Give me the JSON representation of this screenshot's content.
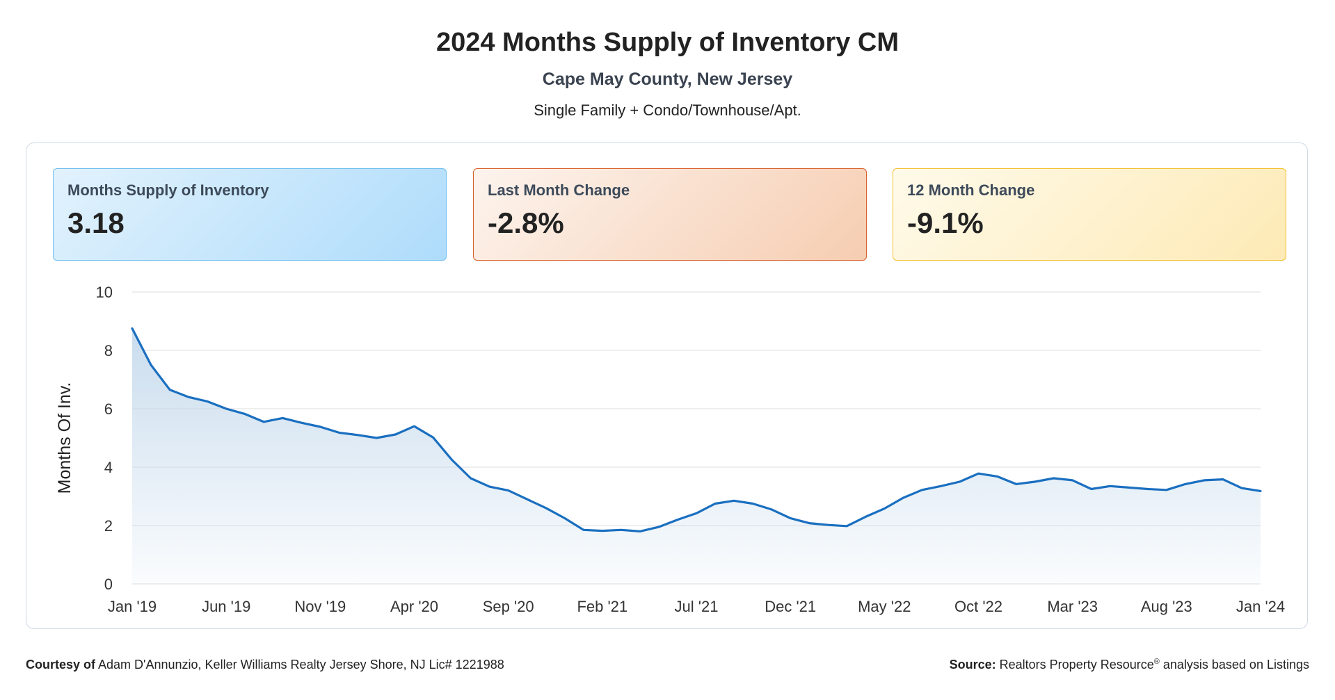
{
  "title": "2024 Months Supply of Inventory CM",
  "subtitle": "Cape May County, New Jersey",
  "subtitle2": "Single Family + Condo/Townhouse/Apt.",
  "cards": [
    {
      "label": "Months Supply of Inventory",
      "value": "3.18"
    },
    {
      "label": "Last Month Change",
      "value": "-2.8%"
    },
    {
      "label": "12 Month Change",
      "value": "-9.1%"
    }
  ],
  "footer": {
    "courtesy_label": "Courtesy of",
    "courtesy_text": "Adam D'Annunzio, Keller Williams Realty Jersey Shore, NJ Lic# 1221988",
    "source_label": "Source:",
    "source_name": "Realtors Property Resource",
    "source_mark": "®",
    "source_text": "analysis based on Listings"
  },
  "colors": {
    "line": "#1a6fc0",
    "area_top": "#c4d9ec",
    "grid": "#dcdcdc",
    "axis_text": "#333333"
  },
  "chart_data": {
    "type": "area",
    "title": "",
    "xlabel": "",
    "ylabel": "Months Of Inv.",
    "ylim": [
      0,
      10
    ],
    "yticks": [
      0,
      2,
      4,
      6,
      8,
      10
    ],
    "grid": true,
    "xtick_labels": [
      "Jan '19",
      "Jun '19",
      "Nov '19",
      "Apr '20",
      "Sep '20",
      "Feb '21",
      "Jul '21",
      "Dec '21",
      "May '22",
      "Oct '22",
      "Mar '23",
      "Aug '23",
      "Jan '24"
    ],
    "x": [
      "Jan '19",
      "Feb '19",
      "Mar '19",
      "Apr '19",
      "May '19",
      "Jun '19",
      "Jul '19",
      "Aug '19",
      "Sep '19",
      "Oct '19",
      "Nov '19",
      "Dec '19",
      "Jan '20",
      "Feb '20",
      "Mar '20",
      "Apr '20",
      "May '20",
      "Jun '20",
      "Jul '20",
      "Aug '20",
      "Sep '20",
      "Oct '20",
      "Nov '20",
      "Dec '20",
      "Jan '21",
      "Feb '21",
      "Mar '21",
      "Apr '21",
      "May '21",
      "Jun '21",
      "Jul '21",
      "Aug '21",
      "Sep '21",
      "Oct '21",
      "Nov '21",
      "Dec '21",
      "Jan '22",
      "Feb '22",
      "Mar '22",
      "Apr '22",
      "May '22",
      "Jun '22",
      "Jul '22",
      "Aug '22",
      "Sep '22",
      "Oct '22",
      "Nov '22",
      "Dec '22",
      "Jan '23",
      "Feb '23",
      "Mar '23",
      "Apr '23",
      "May '23",
      "Jun '23",
      "Jul '23",
      "Aug '23",
      "Sep '23",
      "Oct '23",
      "Nov '23",
      "Dec '23",
      "Jan '24"
    ],
    "series": [
      {
        "values": [
          8.75,
          7.5,
          6.65,
          6.4,
          6.25,
          6.0,
          5.82,
          5.55,
          5.68,
          5.52,
          5.38,
          5.18,
          5.1,
          5.0,
          5.12,
          5.4,
          5.02,
          4.25,
          3.62,
          3.33,
          3.2,
          2.9,
          2.6,
          2.25,
          1.85,
          1.82,
          1.85,
          1.8,
          1.95,
          2.2,
          2.42,
          2.75,
          2.85,
          2.75,
          2.55,
          2.25,
          2.08,
          2.02,
          1.98,
          2.3,
          2.58,
          2.95,
          3.22,
          3.35,
          3.5,
          3.78,
          3.68,
          3.42,
          3.5,
          3.62,
          3.55,
          3.25,
          3.35,
          3.3,
          3.25,
          3.22,
          3.42,
          3.55,
          3.58,
          3.28,
          3.18
        ]
      }
    ]
  }
}
